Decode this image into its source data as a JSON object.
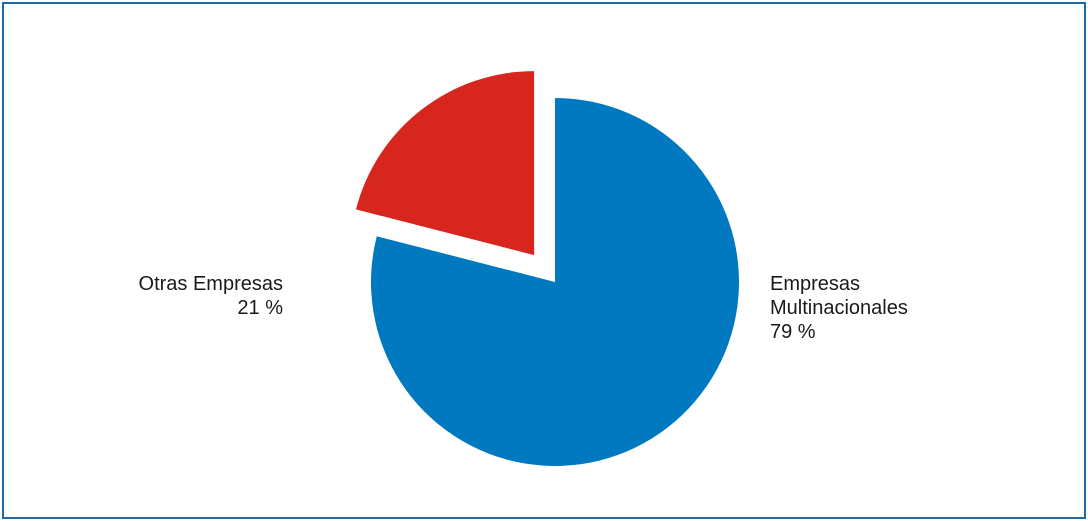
{
  "chart_data": {
    "type": "pie",
    "title": "",
    "slices": [
      {
        "label_lines": [
          "Empresas",
          "Multinacionales"
        ],
        "value_text": "79 %",
        "value": 79,
        "color": "#0079c1",
        "exploded": false
      },
      {
        "label_lines": [
          "Otras Empresas"
        ],
        "value_text": "21 %",
        "value": 21,
        "color": "#d7261e",
        "exploded": true
      }
    ],
    "legend": "none",
    "frame_color": "#1f6aa5"
  }
}
